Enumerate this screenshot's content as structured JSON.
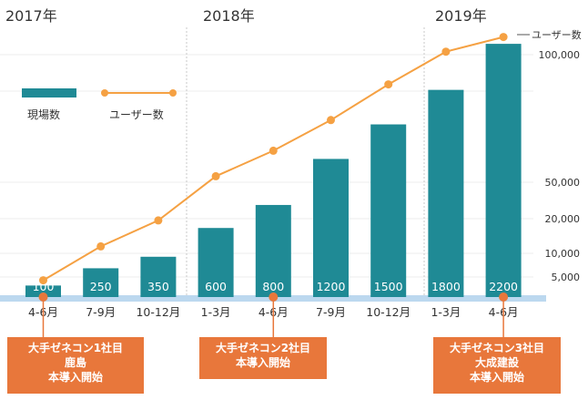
{
  "chart_data": {
    "type": "bar+line",
    "years": [
      "2017年",
      "2018年",
      "2019年"
    ],
    "categories": [
      "4-6月",
      "7-9月",
      "10-12月",
      "1-3月",
      "4-6月",
      "7-9月",
      "10-12月",
      "1-3月",
      "4-6月"
    ],
    "series": [
      {
        "name": "現場数",
        "type": "bar",
        "values": [
          100,
          250,
          350,
          600,
          800,
          1200,
          1500,
          1800,
          2200
        ]
      },
      {
        "name": "ユーザー数",
        "type": "line",
        "values": [
          3800,
          12000,
          19500,
          52000,
          62000,
          74000,
          88000,
          101000,
          108000
        ]
      }
    ],
    "bar_scale_max": 2280,
    "right_axis": {
      "label": "ユーザー数",
      "ticks": [
        "100,000",
        "50,000",
        "20,000",
        "10,000",
        "5,000"
      ]
    },
    "legend": {
      "position": "top-left"
    },
    "colors": {
      "bar": "#1f8a95",
      "line": "#f5a143",
      "marker": "#f5a143",
      "callout": "#e8773b",
      "callout_dot": "#e8773b",
      "baseline": "#bcd8ef"
    },
    "annotations": [
      {
        "category_index": 0,
        "lines": [
          "大手ゼネコン1社目",
          "鹿島",
          "本導入開始"
        ]
      },
      {
        "category_index": 4,
        "lines": [
          "大手ゼネコン2社目",
          "本導入開始"
        ]
      },
      {
        "category_index": 8,
        "lines": [
          "大手ゼネコン3社目",
          "大成建設",
          "本導入開始"
        ]
      }
    ]
  }
}
